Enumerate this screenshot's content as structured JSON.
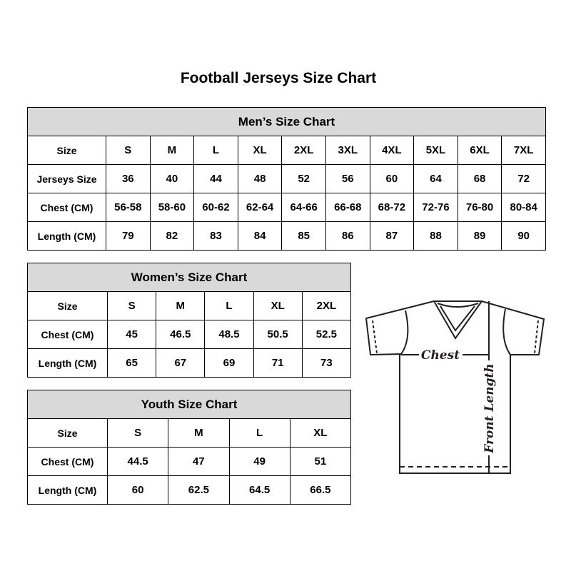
{
  "title": "Football Jerseys Size Chart",
  "men": {
    "caption": "Men’s Size Chart",
    "rows": [
      [
        "Size",
        "S",
        "M",
        "L",
        "XL",
        "2XL",
        "3XL",
        "4XL",
        "5XL",
        "6XL",
        "7XL"
      ],
      [
        "Jerseys Size",
        "36",
        "40",
        "44",
        "48",
        "52",
        "56",
        "60",
        "64",
        "68",
        "72"
      ],
      [
        "Chest (CM)",
        "56-58",
        "58-60",
        "60-62",
        "62-64",
        "64-66",
        "66-68",
        "68-72",
        "72-76",
        "76-80",
        "80-84"
      ],
      [
        "Length (CM)",
        "79",
        "82",
        "83",
        "84",
        "85",
        "86",
        "87",
        "88",
        "89",
        "90"
      ]
    ]
  },
  "women": {
    "caption": "Women’s Size Chart",
    "rows": [
      [
        "Size",
        "S",
        "M",
        "L",
        "XL",
        "2XL"
      ],
      [
        "Chest (CM)",
        "45",
        "46.5",
        "48.5",
        "50.5",
        "52.5"
      ],
      [
        "Length (CM)",
        "65",
        "67",
        "69",
        "71",
        "73"
      ]
    ]
  },
  "youth": {
    "caption": "Youth Size Chart",
    "rows": [
      [
        "Size",
        "S",
        "M",
        "L",
        "XL"
      ],
      [
        "Chest (CM)",
        "44.5",
        "47",
        "49",
        "51"
      ],
      [
        "Length (CM)",
        "60",
        "62.5",
        "64.5",
        "66.5"
      ]
    ]
  },
  "diagram": {
    "chest_label": "Chest",
    "length_label": "Front Length"
  },
  "colors": {
    "header_bg": "#d9d9d9",
    "line": "#231f20"
  }
}
